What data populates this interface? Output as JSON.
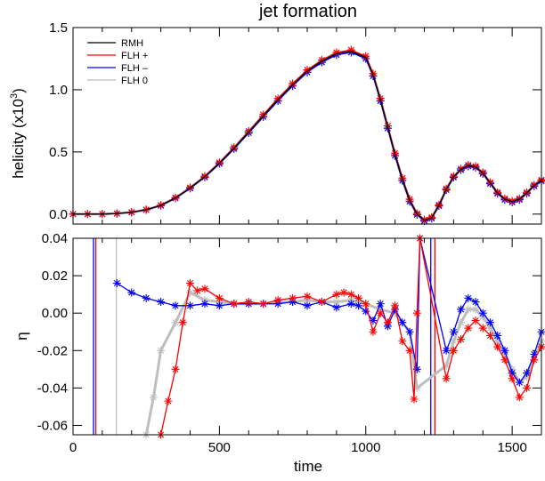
{
  "chart_data": [
    {
      "type": "line",
      "title": "jet formation",
      "xlabel": "",
      "ylabel": "helicity (x10",
      "ylabel_superscript": "3",
      "ylabel_suffix": ")",
      "xlim": [
        0,
        1600
      ],
      "ylim": [
        -0.08,
        1.5
      ],
      "yticks": [
        0.0,
        0.5,
        1.0,
        1.5
      ],
      "ytick_labels": [
        "0.0",
        "0.5",
        "1.0",
        "1.5"
      ],
      "legend_position": "top-left",
      "series": [
        {
          "name": "RMH",
          "color": "#000000",
          "marker": "none",
          "x": [
            0,
            50,
            100,
            150,
            200,
            250,
            300,
            350,
            400,
            450,
            500,
            550,
            600,
            650,
            700,
            750,
            800,
            850,
            900,
            950,
            1000,
            1025,
            1050,
            1075,
            1100,
            1125,
            1150,
            1175,
            1200,
            1225,
            1250,
            1275,
            1300,
            1325,
            1350,
            1375,
            1400,
            1425,
            1450,
            1475,
            1500,
            1525,
            1550,
            1575,
            1600
          ],
          "y": [
            0,
            0,
            0,
            0.005,
            0.015,
            0.035,
            0.07,
            0.13,
            0.21,
            0.3,
            0.41,
            0.53,
            0.66,
            0.79,
            0.92,
            1.04,
            1.15,
            1.23,
            1.29,
            1.31,
            1.26,
            1.12,
            0.92,
            0.7,
            0.48,
            0.28,
            0.11,
            0.0,
            -0.05,
            -0.03,
            0.07,
            0.2,
            0.3,
            0.36,
            0.39,
            0.38,
            0.33,
            0.25,
            0.17,
            0.12,
            0.1,
            0.12,
            0.17,
            0.23,
            0.27
          ]
        },
        {
          "name": "FLH +",
          "color": "#ff0000",
          "marker": "asterisk",
          "x": [
            0,
            50,
            100,
            150,
            200,
            250,
            300,
            350,
            400,
            450,
            500,
            550,
            600,
            650,
            700,
            750,
            800,
            850,
            900,
            950,
            1000,
            1025,
            1050,
            1075,
            1100,
            1125,
            1150,
            1175,
            1200,
            1225,
            1250,
            1275,
            1300,
            1325,
            1350,
            1375,
            1400,
            1425,
            1450,
            1475,
            1500,
            1525,
            1550,
            1575,
            1600
          ],
          "y": [
            0,
            0,
            0,
            0.005,
            0.016,
            0.036,
            0.072,
            0.133,
            0.214,
            0.305,
            0.415,
            0.537,
            0.668,
            0.8,
            0.93,
            1.05,
            1.16,
            1.24,
            1.3,
            1.32,
            1.27,
            1.13,
            0.93,
            0.71,
            0.49,
            0.29,
            0.12,
            0.005,
            -0.045,
            -0.025,
            0.075,
            0.205,
            0.305,
            0.365,
            0.395,
            0.385,
            0.335,
            0.255,
            0.175,
            0.125,
            0.105,
            0.125,
            0.175,
            0.235,
            0.275
          ]
        },
        {
          "name": "FLH –",
          "color": "#0000ff",
          "marker": "asterisk",
          "x": [
            0,
            50,
            100,
            150,
            200,
            250,
            300,
            350,
            400,
            450,
            500,
            550,
            600,
            650,
            700,
            750,
            800,
            850,
            900,
            950,
            1000,
            1025,
            1050,
            1075,
            1100,
            1125,
            1150,
            1175,
            1200,
            1225,
            1250,
            1275,
            1300,
            1325,
            1350,
            1375,
            1400,
            1425,
            1450,
            1475,
            1500,
            1525,
            1550,
            1575,
            1600
          ],
          "y": [
            0,
            0,
            0,
            0.005,
            0.014,
            0.034,
            0.068,
            0.128,
            0.207,
            0.296,
            0.405,
            0.524,
            0.653,
            0.782,
            0.91,
            1.03,
            1.14,
            1.22,
            1.28,
            1.3,
            1.25,
            1.11,
            0.91,
            0.69,
            0.47,
            0.27,
            0.1,
            -0.005,
            -0.055,
            -0.035,
            0.065,
            0.195,
            0.295,
            0.355,
            0.385,
            0.375,
            0.325,
            0.245,
            0.165,
            0.115,
            0.095,
            0.115,
            0.165,
            0.225,
            0.265
          ]
        },
        {
          "name": "FLH 0",
          "color": "#bebebe",
          "marker": "asterisk",
          "x": [
            0,
            50,
            100,
            150,
            200,
            250,
            300,
            350,
            400,
            450,
            500,
            550,
            600,
            650,
            700,
            750,
            800,
            850,
            900,
            950,
            1000,
            1025,
            1050,
            1075,
            1100,
            1125,
            1150,
            1175,
            1200,
            1225,
            1250,
            1275,
            1300,
            1325,
            1350,
            1375,
            1400,
            1425,
            1450,
            1475,
            1500,
            1525,
            1550,
            1575,
            1600
          ],
          "y": [
            0,
            0,
            0,
            0.005,
            0.015,
            0.035,
            0.07,
            0.13,
            0.21,
            0.3,
            0.41,
            0.53,
            0.66,
            0.79,
            0.92,
            1.04,
            1.15,
            1.23,
            1.29,
            1.31,
            1.26,
            1.12,
            0.92,
            0.7,
            0.48,
            0.28,
            0.11,
            0.0,
            -0.05,
            -0.03,
            0.07,
            0.2,
            0.3,
            0.36,
            0.39,
            0.38,
            0.33,
            0.25,
            0.17,
            0.12,
            0.1,
            0.12,
            0.17,
            0.23,
            0.27
          ]
        }
      ]
    },
    {
      "type": "line",
      "title": "",
      "xlabel": "time",
      "ylabel": "η",
      "xlim": [
        0,
        1600
      ],
      "ylim": [
        -0.065,
        0.04
      ],
      "xticks": [
        0,
        500,
        1000,
        1500
      ],
      "xtick_labels": [
        "0",
        "500",
        "1000",
        "1500"
      ],
      "yticks": [
        -0.06,
        -0.04,
        -0.02,
        0.0,
        0.02,
        0.04
      ],
      "ytick_labels": [
        "-0.06",
        "-0.04",
        "-0.02",
        "0.00",
        "0.02",
        "0.04"
      ],
      "series": [
        {
          "name": "FLH +",
          "color": "#ff0000",
          "marker": "asterisk",
          "x": [
            300,
            325,
            350,
            375,
            400,
            425,
            450,
            500,
            550,
            600,
            650,
            700,
            750,
            800,
            850,
            900,
            925,
            950,
            975,
            1000,
            1025,
            1050,
            1075,
            1100,
            1125,
            1150,
            1165,
            1175,
            1185,
            1275,
            1300,
            1325,
            1350,
            1375,
            1400,
            1425,
            1450,
            1475,
            1500,
            1525,
            1550,
            1575,
            1600
          ],
          "y": [
            -0.065,
            -0.047,
            -0.03,
            -0.005,
            0.016,
            0.012,
            0.013,
            0.008,
            0.005,
            0.006,
            0.005,
            0.007,
            0.008,
            0.009,
            0.006,
            0.01,
            0.011,
            0.01,
            0.008,
            0.005,
            -0.01,
            0.0,
            -0.005,
            0.004,
            -0.015,
            -0.02,
            -0.046,
            0.0,
            0.04,
            -0.035,
            -0.02,
            -0.014,
            -0.008,
            -0.004,
            -0.008,
            -0.012,
            -0.018,
            -0.025,
            -0.035,
            -0.045,
            -0.04,
            -0.025,
            -0.018
          ]
        },
        {
          "name": "FLH –",
          "color": "#0000ff",
          "marker": "asterisk",
          "x": [
            150,
            200,
            250,
            300,
            350,
            400,
            450,
            500,
            550,
            600,
            650,
            700,
            750,
            800,
            850,
            900,
            950,
            975,
            1000,
            1025,
            1050,
            1075,
            1100,
            1125,
            1150,
            1175,
            1185,
            1275,
            1300,
            1325,
            1350,
            1375,
            1400,
            1425,
            1450,
            1475,
            1500,
            1525,
            1550,
            1575,
            1600
          ],
          "y": [
            0.016,
            0.011,
            0.008,
            0.006,
            0.004,
            0.004,
            0.005,
            0.004,
            0.005,
            0.005,
            0.005,
            0.005,
            0.006,
            0.004,
            0.006,
            0.003,
            0.005,
            0.004,
            0.001,
            -0.004,
            0.005,
            -0.007,
            0.002,
            -0.005,
            -0.01,
            -0.03,
            0.04,
            -0.02,
            -0.01,
            0.002,
            0.008,
            0.006,
            0.0,
            -0.005,
            -0.012,
            -0.02,
            -0.032,
            -0.037,
            -0.032,
            -0.022,
            -0.01
          ]
        },
        {
          "name": "FLH 0",
          "color": "#bebebe",
          "marker": "asterisk",
          "x": [
            250,
            275,
            300,
            350,
            400,
            450,
            500,
            550,
            600,
            650,
            700,
            750,
            800,
            850,
            900,
            950,
            1000,
            1050,
            1100,
            1150,
            1175,
            1275,
            1300,
            1325,
            1350,
            1375,
            1400,
            1425,
            1450,
            1475,
            1500,
            1525,
            1550,
            1575,
            1600
          ],
          "y": [
            -0.065,
            -0.045,
            -0.02,
            -0.005,
            0.011,
            0.007,
            0.006,
            0.005,
            0.005,
            0.005,
            0.006,
            0.006,
            0.007,
            0.006,
            0.006,
            0.007,
            0.005,
            0.002,
            0.0,
            -0.01,
            -0.04,
            -0.028,
            -0.015,
            -0.005,
            0.002,
            0.002,
            -0.002,
            -0.008,
            -0.015,
            -0.022,
            -0.03,
            -0.037,
            -0.034,
            -0.025,
            -0.015
          ]
        }
      ],
      "vertical_lines": [
        {
          "x": 70,
          "color": "#0000ff"
        },
        {
          "x": 78,
          "color": "#ff0000"
        },
        {
          "x": 148,
          "color": "#bebebe"
        },
        {
          "x": 1222,
          "color": "#0000ff"
        },
        {
          "x": 1236,
          "color": "#ff0000"
        }
      ]
    }
  ]
}
